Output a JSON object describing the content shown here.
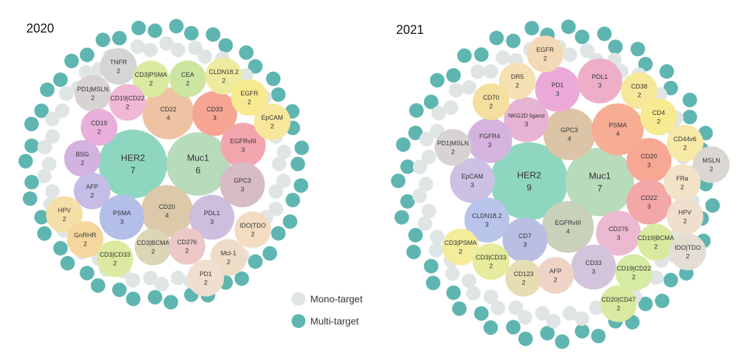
{
  "chart_data": [
    {
      "type": "bubble",
      "year_label": "2020",
      "categories": [
        {
          "name": "HER2",
          "count": 7,
          "color": "#8ed6c0"
        },
        {
          "name": "Muc1",
          "count": 6,
          "color": "#b8dbbc"
        },
        {
          "name": "CD22",
          "count": 4,
          "color": "#eec3a3"
        },
        {
          "name": "CD20",
          "count": 4,
          "color": "#dcc9a9"
        },
        {
          "name": "CD33",
          "count": 3,
          "color": "#f7a593"
        },
        {
          "name": "EGFRvIII",
          "count": 3,
          "color": "#f2a5ad"
        },
        {
          "name": "GPC3",
          "count": 3,
          "color": "#d6bcc4"
        },
        {
          "name": "PDL1",
          "count": 3,
          "color": "#cdbede"
        },
        {
          "name": "PSMA",
          "count": 3,
          "color": "#b3bfe8"
        },
        {
          "name": "TNFR",
          "count": 2,
          "color": "#d5d5d5"
        },
        {
          "name": "CD3|PSMA",
          "count": 2,
          "color": "#d9eba0"
        },
        {
          "name": "CEA",
          "count": 2,
          "color": "#cce6a2"
        },
        {
          "name": "CLDN18.2",
          "count": 2,
          "color": "#edeb9f"
        },
        {
          "name": "EGFR",
          "count": 2,
          "color": "#f7ea8f"
        },
        {
          "name": "EpCAM",
          "count": 2,
          "color": "#f7e79b"
        },
        {
          "name": "PD1|MSLN",
          "count": 2,
          "color": "#d8d3d3"
        },
        {
          "name": "CD19|CD22",
          "count": 2,
          "color": "#f0b8d4"
        },
        {
          "name": "CD19",
          "count": 2,
          "color": "#e7afd9"
        },
        {
          "name": "BSG",
          "count": 2,
          "color": "#d2b3df"
        },
        {
          "name": "AFP",
          "count": 2,
          "color": "#c5bde6"
        },
        {
          "name": "HPV",
          "count": 2,
          "color": "#f5dfa9"
        },
        {
          "name": "GnRHR",
          "count": 2,
          "color": "#f5d79d"
        },
        {
          "name": "CD3|CD33",
          "count": 2,
          "color": "#dbeaa0"
        },
        {
          "name": "CD3|BCMA",
          "count": 2,
          "color": "#dcd6b6"
        },
        {
          "name": "CD276",
          "count": 2,
          "color": "#ebc7c5"
        },
        {
          "name": "Mcl-1",
          "count": 2,
          "color": "#efdcc7"
        },
        {
          "name": "IDO|TDO",
          "count": 2,
          "color": "#f2ddc2"
        },
        {
          "name": "PD1",
          "count": 2,
          "color": "#f0ded0"
        }
      ]
    },
    {
      "type": "bubble",
      "year_label": "2021",
      "categories": [
        {
          "name": "HER2",
          "count": 9,
          "color": "#8ed6c0"
        },
        {
          "name": "Muc1",
          "count": 7,
          "color": "#b8dbbc"
        },
        {
          "name": "GPC3",
          "count": 4,
          "color": "#dcc4a6"
        },
        {
          "name": "PSMA",
          "count": 4,
          "color": "#f7ac94"
        },
        {
          "name": "EGFRvIII",
          "count": 4,
          "color": "#c9d1bb"
        },
        {
          "name": "PD1",
          "count": 3,
          "color": "#eba9d8"
        },
        {
          "name": "PDL1",
          "count": 3,
          "color": "#efaec8"
        },
        {
          "name": "NKG2D ligand",
          "count": 3,
          "color": "#e7b3d3"
        },
        {
          "name": "FGFR4",
          "count": 3,
          "color": "#d5b3df"
        },
        {
          "name": "EpCAM",
          "count": 3,
          "color": "#ccc0e3"
        },
        {
          "name": "CLDN18.2",
          "count": 3,
          "color": "#b9c4ea"
        },
        {
          "name": "CD7",
          "count": 3,
          "color": "#b8bfe3"
        },
        {
          "name": "CD276",
          "count": 3,
          "color": "#ebbad0"
        },
        {
          "name": "CD33",
          "count": 3,
          "color": "#d3c4dc"
        },
        {
          "name": "CD20",
          "count": 3,
          "color": "#f7a893"
        },
        {
          "name": "CD22",
          "count": 3,
          "color": "#f3a7a7"
        },
        {
          "name": "EGFR",
          "count": 2,
          "color": "#f4d9b6"
        },
        {
          "name": "DR5",
          "count": 2,
          "color": "#f5e0b3"
        },
        {
          "name": "CD70",
          "count": 2,
          "color": "#f5df9f"
        },
        {
          "name": "CD38",
          "count": 2,
          "color": "#f7e79a"
        },
        {
          "name": "CD4",
          "count": 2,
          "color": "#f7ea90"
        },
        {
          "name": "CD44v6",
          "count": 2,
          "color": "#f7e9a6"
        },
        {
          "name": "PD1|MSLN",
          "count": 2,
          "color": "#d7d3d3"
        },
        {
          "name": "MSLN",
          "count": 2,
          "color": "#dad7d2"
        },
        {
          "name": "FRa",
          "count": 2,
          "color": "#f2e3c8"
        },
        {
          "name": "HPV",
          "count": 2,
          "color": "#f0dfcd"
        },
        {
          "name": "CD19|BCMA",
          "count": 2,
          "color": "#d9ea9f"
        },
        {
          "name": "IDO|TDO",
          "count": 2,
          "color": "#e4ddd3"
        },
        {
          "name": "CD3|PSMA",
          "count": 2,
          "color": "#f2ec9b"
        },
        {
          "name": "CD3|CD33",
          "count": 2,
          "color": "#e6eb9d"
        },
        {
          "name": "CD123",
          "count": 2,
          "color": "#e6ddb3"
        },
        {
          "name": "AFP",
          "count": 2,
          "color": "#f0d3c7"
        },
        {
          "name": "CD19|CD22",
          "count": 2,
          "color": "#d5eaa2"
        },
        {
          "name": "CD20|CD47",
          "count": 2,
          "color": "#d7eaa0"
        }
      ]
    }
  ],
  "legend": {
    "items": [
      {
        "label": "Mono-target",
        "color": "#dfe5e4"
      },
      {
        "label": "Multi-target",
        "color": "#5fb6b1"
      }
    ]
  },
  "colors": {
    "mono": "#dfe5e4",
    "multi": "#5fb6b1"
  }
}
